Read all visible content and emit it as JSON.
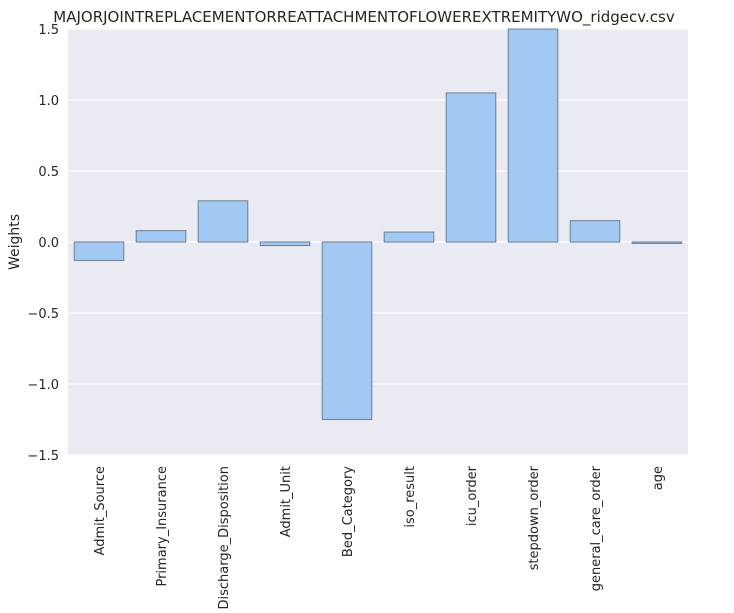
{
  "chart_data": {
    "type": "bar",
    "title": "MAJORJOINTREPLACEMENTORREATTACHMENTOFLOWEREXTREMITYWO_ridgecv.csv",
    "xlabel": "",
    "ylabel": "Weights",
    "ylim": [
      -1.5,
      1.5
    ],
    "yticks": [
      "−1.5",
      "−1.0",
      "−0.5",
      "0.0",
      "0.5",
      "1.0",
      "1.5"
    ],
    "ytick_values": [
      -1.5,
      -1.0,
      -0.5,
      0.0,
      0.5,
      1.0,
      1.5
    ],
    "categories": [
      "Admit_Source",
      "Primary_Insurance",
      "Discharge_Disposition",
      "Admit_Unit",
      "Bed_Category",
      "iso_result",
      "icu_order",
      "stepdown_order",
      "general_care_order",
      "age"
    ],
    "values": [
      -0.13,
      0.08,
      0.29,
      -0.025,
      -1.25,
      0.07,
      1.05,
      1.5,
      0.15,
      -0.01
    ],
    "grid": true,
    "colors": {
      "background": "#EAEAF2",
      "grid": "#FFFFFF",
      "bar_fill": "#A1C9F4",
      "bar_edge": "#6E7F91",
      "text": "#262626"
    }
  }
}
